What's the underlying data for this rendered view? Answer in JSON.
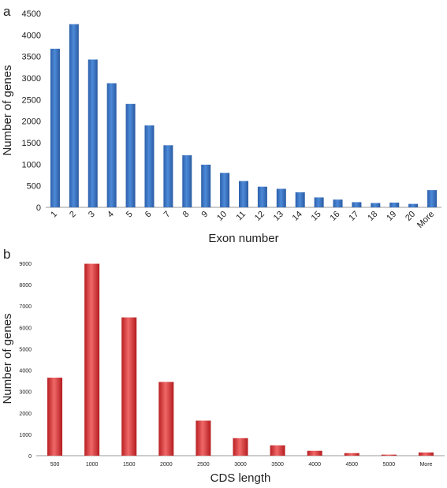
{
  "chart_data": [
    {
      "panel": "a",
      "type": "bar",
      "categories": [
        "1",
        "2",
        "3",
        "4",
        "5",
        "6",
        "7",
        "8",
        "9",
        "10",
        "11",
        "12",
        "13",
        "14",
        "15",
        "16",
        "17",
        "18",
        "19",
        "20",
        "More"
      ],
      "values": [
        3680,
        4250,
        3430,
        2880,
        2400,
        1900,
        1440,
        1210,
        990,
        800,
        610,
        480,
        430,
        350,
        230,
        180,
        120,
        100,
        110,
        80,
        400
      ],
      "xlabel": "Exon number",
      "ylabel": "Number of genes",
      "ylim": [
        0,
        4500
      ],
      "yticks": [
        0,
        500,
        1000,
        1500,
        2000,
        2500,
        3000,
        3500,
        4000,
        4500
      ],
      "grid": false,
      "color": "#3a72c8"
    },
    {
      "panel": "b",
      "type": "bar",
      "categories": [
        "500",
        "1000",
        "1500",
        "2000",
        "2500",
        "3000",
        "3500",
        "4000",
        "4500",
        "5000",
        "More"
      ],
      "values": [
        3650,
        8980,
        6470,
        3450,
        1640,
        820,
        480,
        230,
        120,
        50,
        150
      ],
      "xlabel": "CDS length",
      "ylabel": "Number of genes",
      "ylim": [
        0,
        9000
      ],
      "yticks": [
        0,
        1000,
        2000,
        3000,
        4000,
        5000,
        6000,
        7000,
        8000,
        9000
      ],
      "grid": false,
      "color": "#d83a3a"
    }
  ]
}
